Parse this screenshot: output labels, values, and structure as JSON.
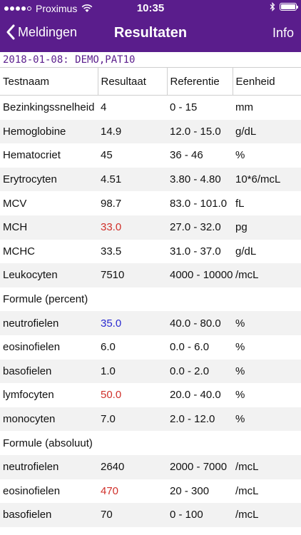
{
  "status_bar": {
    "carrier": "Proximus",
    "time": "10:35"
  },
  "nav": {
    "back_label": "Meldingen",
    "title": "Resultaten",
    "info_label": "Info"
  },
  "subheader": "2018-01-08: DEMO,PAT10",
  "table": {
    "headers": [
      "Testnaam",
      "Resultaat",
      "Referentie",
      "Eenheid"
    ],
    "rows": [
      {
        "name": "Bezinkingssnelheid",
        "result": "4",
        "ref": "0 - 15",
        "unit": "mm",
        "flag": ""
      },
      {
        "name": "Hemoglobine",
        "result": "14.9",
        "ref": "12.0 - 15.0",
        "unit": "g/dL",
        "flag": ""
      },
      {
        "name": "Hematocriet",
        "result": "45",
        "ref": "36 - 46",
        "unit": "%",
        "flag": ""
      },
      {
        "name": "Erytrocyten",
        "result": "4.51",
        "ref": "3.80 - 4.80",
        "unit": "10*6/mcL",
        "flag": ""
      },
      {
        "name": "MCV",
        "result": "98.7",
        "ref": "83.0 - 101.0",
        "unit": "fL",
        "flag": ""
      },
      {
        "name": "MCH",
        "result": "33.0",
        "ref": "27.0 - 32.0",
        "unit": "pg",
        "flag": "high"
      },
      {
        "name": "MCHC",
        "result": "33.5",
        "ref": "31.0 - 37.0",
        "unit": "g/dL",
        "flag": ""
      },
      {
        "name": "Leukocyten",
        "result": "7510",
        "ref": "4000 - 10000",
        "unit": "/mcL",
        "flag": ""
      },
      {
        "name": "Formule (percent)",
        "result": "",
        "ref": "",
        "unit": "",
        "flag": ""
      },
      {
        "name": "neutrofielen",
        "result": "35.0",
        "ref": "40.0 - 80.0",
        "unit": "%",
        "flag": "low"
      },
      {
        "name": "eosinofielen",
        "result": "6.0",
        "ref": "0.0 - 6.0",
        "unit": "%",
        "flag": ""
      },
      {
        "name": "basofielen",
        "result": "1.0",
        "ref": "0.0 - 2.0",
        "unit": "%",
        "flag": ""
      },
      {
        "name": "lymfocyten",
        "result": "50.0",
        "ref": "20.0 - 40.0",
        "unit": "%",
        "flag": "high"
      },
      {
        "name": "monocyten",
        "result": "7.0",
        "ref": "2.0 - 12.0",
        "unit": "%",
        "flag": ""
      },
      {
        "name": "Formule (absoluut)",
        "result": "",
        "ref": "",
        "unit": "",
        "flag": ""
      },
      {
        "name": "neutrofielen",
        "result": "2640",
        "ref": "2000 - 7000",
        "unit": "/mcL",
        "flag": ""
      },
      {
        "name": "eosinofielen",
        "result": "470",
        "ref": "20 - 300",
        "unit": "/mcL",
        "flag": "high"
      },
      {
        "name": "basofielen",
        "result": "70",
        "ref": "0 - 100",
        "unit": "/mcL",
        "flag": ""
      }
    ]
  },
  "colors": {
    "bar": "#5a1d8c",
    "high": "#d0302a",
    "low": "#2a2ad0"
  }
}
